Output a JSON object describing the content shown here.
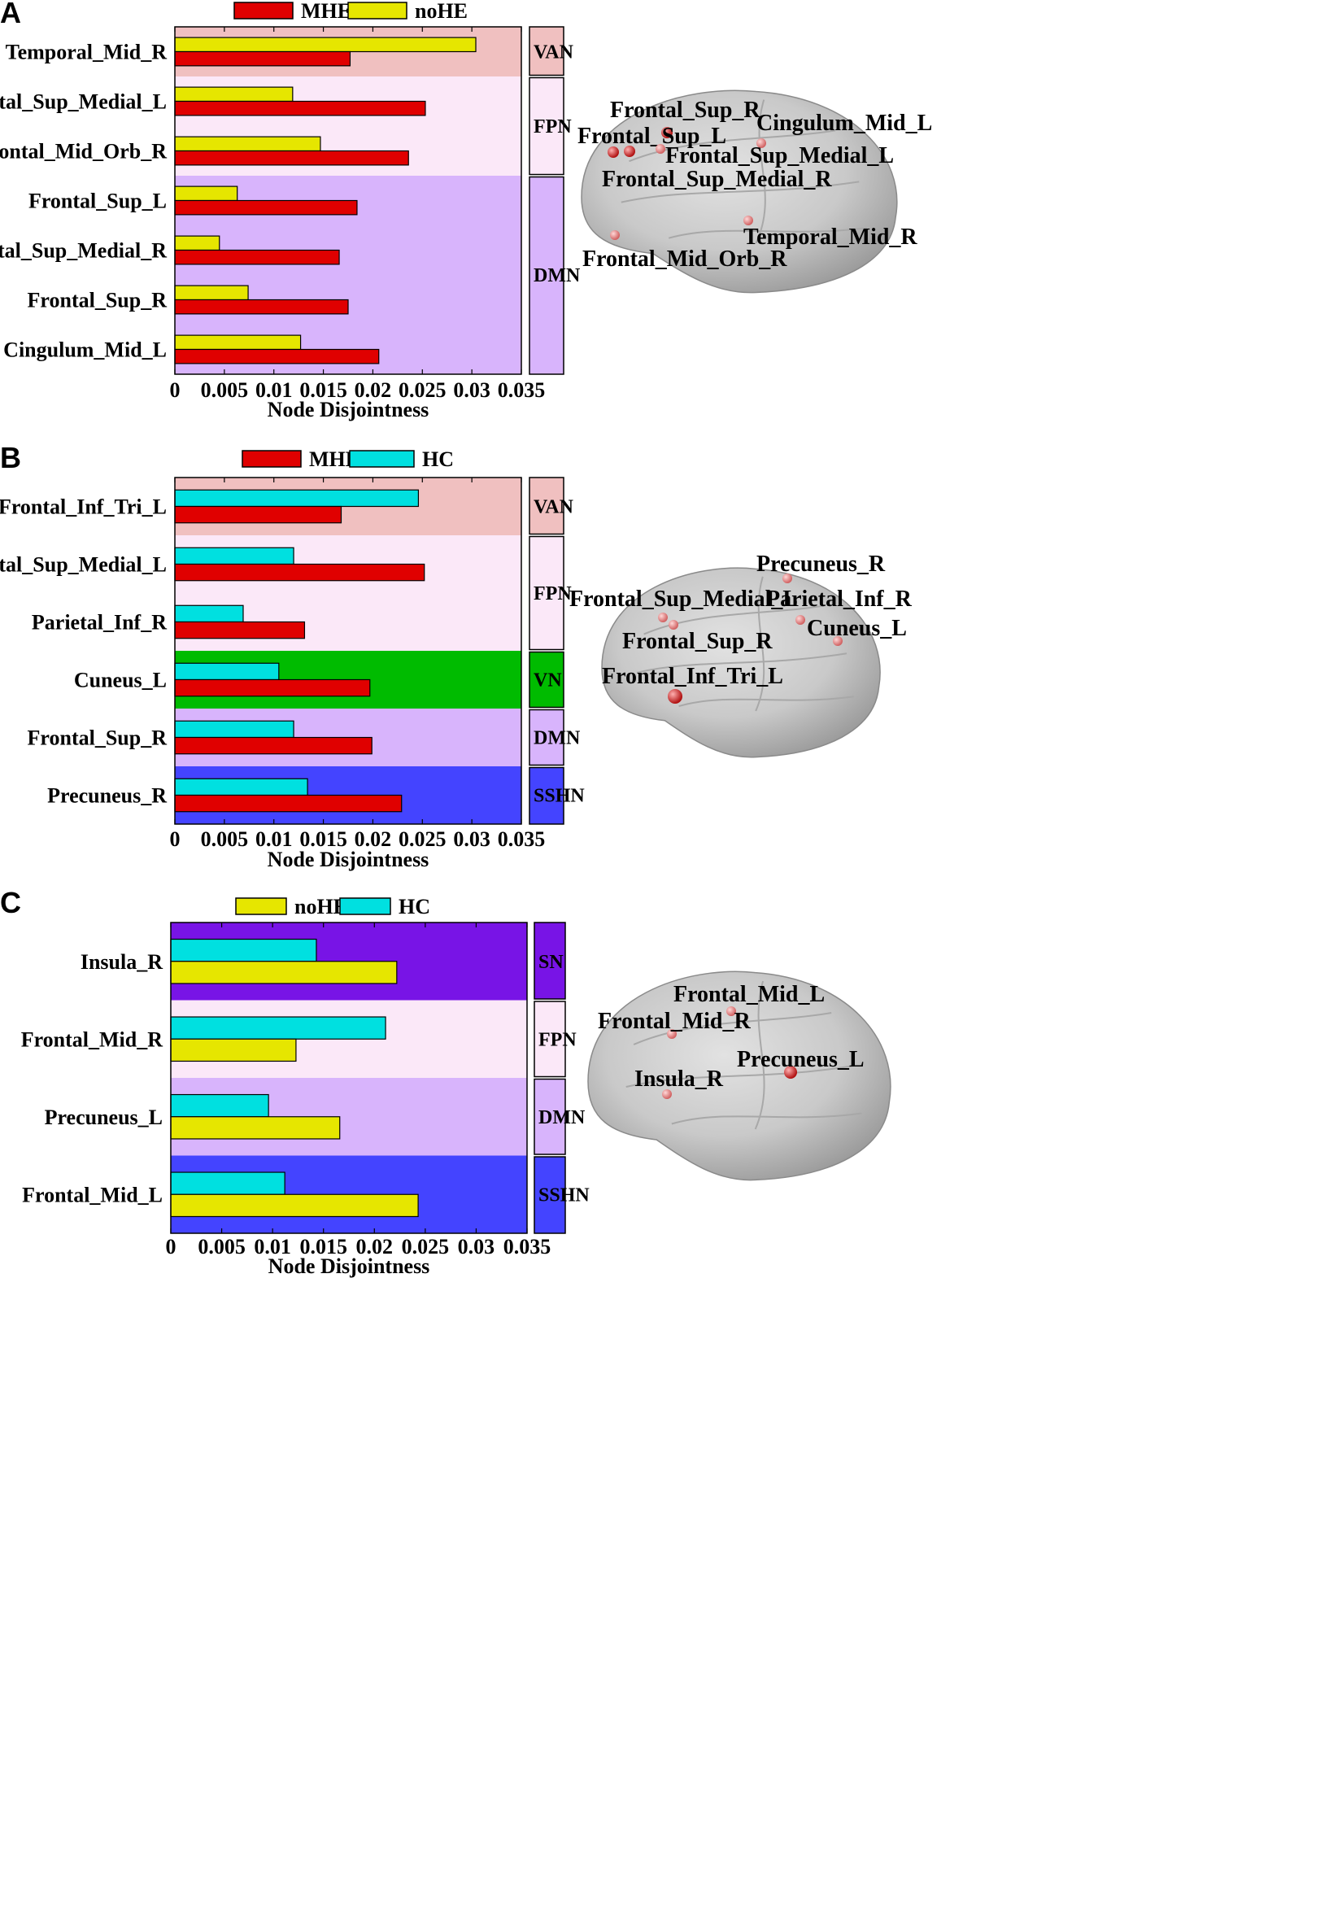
{
  "chart_data": [
    {
      "type": "bar",
      "panel": "A",
      "orientation": "horizontal",
      "xlabel": "Node Disjointness",
      "xlim": [
        0,
        0.035
      ],
      "xticks": [
        "0",
        "0.005",
        "0.01",
        "0.015",
        "0.02",
        "0.025",
        "0.03",
        "0.035"
      ],
      "categories": [
        "Temporal_Mid_R",
        "Frontal_Sup_Medial_L",
        "Frontal_Mid_Orb_R",
        "Frontal_Sup_L",
        "Frontal_Sup_Medial_R",
        "Frontal_Sup_R",
        "Cingulum_Mid_L"
      ],
      "series": [
        {
          "name": "MHE",
          "color": "#e00000",
          "values": [
            0.0177,
            0.0253,
            0.0236,
            0.0184,
            0.0166,
            0.0175,
            0.0206
          ]
        },
        {
          "name": "noHE",
          "color": "#e6e600",
          "values": [
            0.0304,
            0.0119,
            0.0147,
            0.0063,
            0.0045,
            0.0074,
            0.0127
          ]
        }
      ],
      "networks": [
        {
          "label": "VAN",
          "color": "#f0c0c0",
          "categories": 1
        },
        {
          "label": "FPN",
          "color": "#fbe8f8",
          "categories": 2
        },
        {
          "label": "DMN",
          "color": "#d8b4fc",
          "categories": 4
        }
      ],
      "brain_nodes": [
        {
          "label": "Frontal_Sup_R",
          "color": "#d84848"
        },
        {
          "label": "Frontal_Sup_L",
          "color": "#d84848"
        },
        {
          "label": "Cingulum_Mid_L",
          "color": "#d84848"
        },
        {
          "label": "Frontal_Sup_Medial_L",
          "color": "#d84848"
        },
        {
          "label": "Frontal_Sup_Medial_R",
          "color": "#d84848"
        },
        {
          "label": "Temporal_Mid_R",
          "color": "#d84848"
        },
        {
          "label": "Frontal_Mid_Orb_R",
          "color": "#d84848"
        }
      ]
    },
    {
      "type": "bar",
      "panel": "B",
      "orientation": "horizontal",
      "xlabel": "Node  Disjointness",
      "xlim": [
        0,
        0.035
      ],
      "xticks": [
        "0",
        "0.005",
        "0.01",
        "0.015",
        "0.02",
        "0.025",
        "0.03",
        "0.035"
      ],
      "categories": [
        "Frontal_Inf_Tri_L",
        "Frontal_Sup_Medial_L",
        "Parietal_Inf_R",
        "Cuneus_L",
        "Frontal_Sup_R",
        "Precuneus_R"
      ],
      "series": [
        {
          "name": "MHE",
          "color": "#e00000",
          "values": [
            0.0168,
            0.0252,
            0.0131,
            0.0197,
            0.0199,
            0.0229
          ]
        },
        {
          "name": "HC",
          "color": "#00e0e0",
          "values": [
            0.0246,
            0.012,
            0.0069,
            0.0105,
            0.012,
            0.0134
          ]
        }
      ],
      "networks": [
        {
          "label": "VAN",
          "color": "#f0c0c0",
          "categories": 1
        },
        {
          "label": "FPN",
          "color": "#fbe8f8",
          "categories": 2
        },
        {
          "label": "VN",
          "color": "#00bb00",
          "categories": 1
        },
        {
          "label": "DMN",
          "color": "#d8b4fc",
          "categories": 1
        },
        {
          "label": "SSHN",
          "color": "#4444ff",
          "categories": 1
        }
      ],
      "brain_nodes": [
        {
          "label": "Precuneus_R",
          "color": "#e88a8a"
        },
        {
          "label": "Frontal_Sup_Medial_L",
          "color": "#e88a8a"
        },
        {
          "label": "Parietal_Inf_R",
          "color": "#e88a8a"
        },
        {
          "label": "Cuneus_L",
          "color": "#e88a8a"
        },
        {
          "label": "Frontal_Sup_R",
          "color": "#e88a8a"
        },
        {
          "label": "Frontal_Inf_Tri_L",
          "color": "#d82020"
        }
      ]
    },
    {
      "type": "bar",
      "panel": "C",
      "orientation": "horizontal",
      "xlabel": "Node  Disjointness",
      "xlim": [
        0,
        0.035
      ],
      "xticks": [
        "0",
        "0.005",
        "0.01",
        "0.015",
        "0.02",
        "0.025",
        "0.03",
        "0.035"
      ],
      "categories": [
        "Insula_R",
        "Frontal_Mid_R",
        "Precuneus_L",
        "Frontal_Mid_L"
      ],
      "series": [
        {
          "name": "noHE",
          "color": "#e6e600",
          "values": [
            0.0222,
            0.0123,
            0.0166,
            0.0243
          ]
        },
        {
          "name": "HC",
          "color": "#00e0e0",
          "values": [
            0.0143,
            0.0211,
            0.0096,
            0.0112
          ]
        }
      ],
      "networks": [
        {
          "label": "SN",
          "color": "#7814e6",
          "categories": 1
        },
        {
          "label": "FPN",
          "color": "#fbe8f8",
          "categories": 1
        },
        {
          "label": "DMN",
          "color": "#d8b4fc",
          "categories": 1
        },
        {
          "label": "SSHN",
          "color": "#4444ff",
          "categories": 1
        }
      ],
      "brain_nodes": [
        {
          "label": "Frontal_Mid_L",
          "color": "#e88a8a"
        },
        {
          "label": "Frontal_Mid_R",
          "color": "#e88a8a"
        },
        {
          "label": "Precuneus_L",
          "color": "#d84848"
        },
        {
          "label": "Insula_R",
          "color": "#e88a8a"
        }
      ]
    }
  ]
}
